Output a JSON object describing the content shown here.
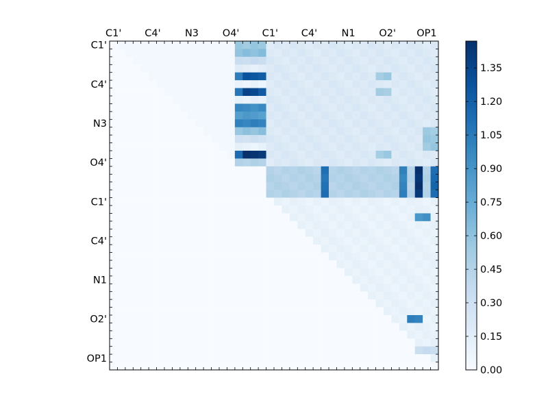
{
  "chart_data": {
    "type": "heatmap",
    "title": "",
    "x_tick_labels": [
      "C1'",
      "C4'",
      "N3",
      "O4'",
      "C1'",
      "C4'",
      "N1",
      "O2'",
      "OP1"
    ],
    "y_tick_labels": [
      "C1'",
      "C4'",
      "N3",
      "O4'",
      "C1'",
      "C4'",
      "N1",
      "O2'",
      "OP1"
    ],
    "n": 42,
    "colormap": "Blues",
    "vmin": 0.0,
    "vmax": 1.47,
    "colorbar_ticks": [
      "0.00",
      "0.15",
      "0.30",
      "0.45",
      "0.60",
      "0.75",
      "0.90",
      "1.05",
      "1.20",
      "1.35"
    ],
    "colorbar_tick_values": [
      0.0,
      0.15,
      0.3,
      0.45,
      0.6,
      0.75,
      0.9,
      1.05,
      1.2,
      1.35
    ],
    "blocks": [
      {
        "rows": [
          0,
          36
        ],
        "cols": [
          1,
          16
        ],
        "value": 0.03,
        "upper_only": true,
        "note": "upper triangle low values"
      },
      {
        "rows": [
          0,
          1
        ],
        "cols": [
          16,
          20
        ],
        "value": 0.55
      },
      {
        "rows": [
          1,
          2
        ],
        "cols": [
          16,
          20
        ],
        "value": 0.62
      },
      {
        "rows": [
          2,
          3
        ],
        "cols": [
          16,
          20
        ],
        "value": 0.35
      },
      {
        "rows": [
          3,
          4
        ],
        "cols": [
          16,
          20
        ],
        "value": 0.15
      },
      {
        "rows": [
          4,
          5
        ],
        "cols": [
          16,
          17
        ],
        "value": 1.05
      },
      {
        "rows": [
          4,
          5
        ],
        "cols": [
          17,
          20
        ],
        "value": 1.25
      },
      {
        "rows": [
          5,
          6
        ],
        "cols": [
          16,
          20
        ],
        "value": 0.08
      },
      {
        "rows": [
          6,
          7
        ],
        "cols": [
          16,
          17
        ],
        "value": 1.1
      },
      {
        "rows": [
          6,
          7
        ],
        "cols": [
          17,
          19
        ],
        "value": 1.35
      },
      {
        "rows": [
          6,
          7
        ],
        "cols": [
          19,
          20
        ],
        "value": 1.2
      },
      {
        "rows": [
          7,
          8
        ],
        "cols": [
          16,
          20
        ],
        "value": 0.12
      },
      {
        "rows": [
          8,
          9
        ],
        "cols": [
          16,
          20
        ],
        "value": 0.95
      },
      {
        "rows": [
          9,
          10
        ],
        "cols": [
          16,
          20
        ],
        "value": 0.85
      },
      {
        "rows": [
          10,
          11
        ],
        "cols": [
          16,
          20
        ],
        "value": 1.0
      },
      {
        "rows": [
          11,
          12
        ],
        "cols": [
          16,
          20
        ],
        "value": 0.6
      },
      {
        "rows": [
          12,
          13
        ],
        "cols": [
          16,
          20
        ],
        "value": 0.3
      },
      {
        "rows": [
          13,
          14
        ],
        "cols": [
          16,
          20
        ],
        "value": 0.1
      },
      {
        "rows": [
          14,
          15
        ],
        "cols": [
          16,
          17
        ],
        "value": 1.15
      },
      {
        "rows": [
          14,
          15
        ],
        "cols": [
          17,
          20
        ],
        "value": 1.45
      },
      {
        "rows": [
          15,
          16
        ],
        "cols": [
          16,
          20
        ],
        "value": 0.45
      },
      {
        "rows": [
          0,
          16
        ],
        "cols": [
          20,
          42
        ],
        "value": 0.2,
        "note": "upper-right light region"
      },
      {
        "rows": [
          4,
          5
        ],
        "cols": [
          34,
          36
        ],
        "value": 0.55
      },
      {
        "rows": [
          6,
          7
        ],
        "cols": [
          34,
          36
        ],
        "value": 0.5
      },
      {
        "rows": [
          14,
          15
        ],
        "cols": [
          34,
          36
        ],
        "value": 0.55
      },
      {
        "rows": [
          11,
          14
        ],
        "cols": [
          40,
          42
        ],
        "value": 0.55
      },
      {
        "rows": [
          16,
          20
        ],
        "cols": [
          20,
          42
        ],
        "value": 0.45,
        "note": "banded rows"
      },
      {
        "rows": [
          16,
          20
        ],
        "cols": [
          27,
          28
        ],
        "value": 1.1
      },
      {
        "rows": [
          16,
          20
        ],
        "cols": [
          37,
          38
        ],
        "value": 1.0
      },
      {
        "rows": [
          16,
          20
        ],
        "cols": [
          39,
          40
        ],
        "value": 1.45
      },
      {
        "rows": [
          16,
          20
        ],
        "cols": [
          41,
          42
        ],
        "value": 1.15
      },
      {
        "rows": [
          20,
          42
        ],
        "cols": [
          20,
          42
        ],
        "value": 0.1,
        "upper_only": true,
        "note": "lower-right triangle light"
      },
      {
        "rows": [
          22,
          23
        ],
        "cols": [
          39,
          41
        ],
        "value": 0.9
      },
      {
        "rows": [
          35,
          36
        ],
        "cols": [
          38,
          40
        ],
        "value": 1.0
      },
      {
        "rows": [
          39,
          40
        ],
        "cols": [
          39,
          42
        ],
        "value": 0.35
      }
    ]
  }
}
